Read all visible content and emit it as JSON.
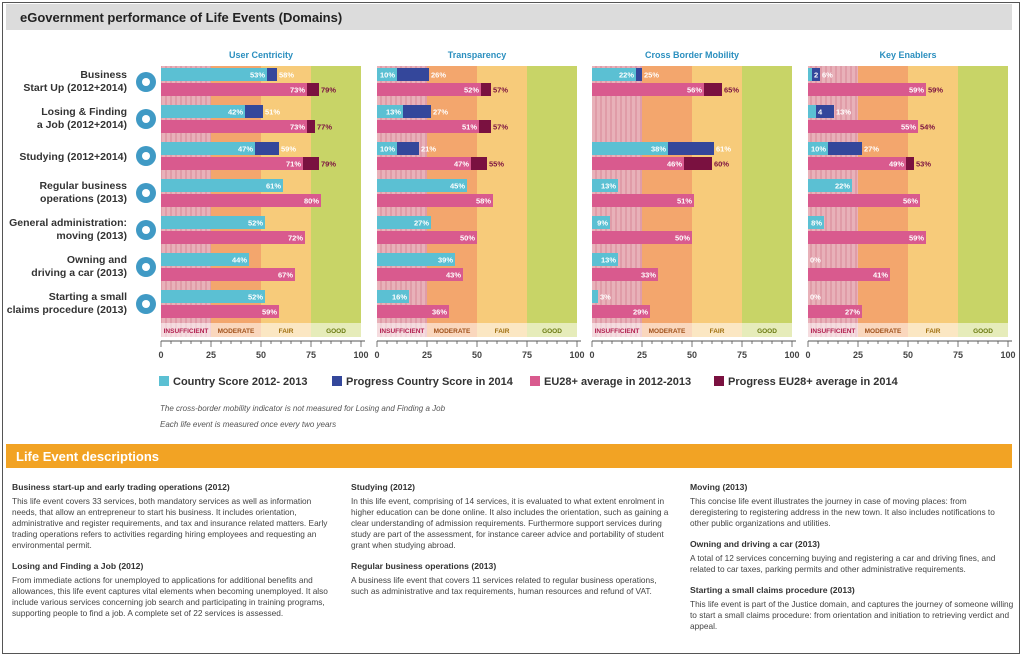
{
  "title": "eGovernment performance of Life Events (Domains)",
  "colors": {
    "country_2012": "#5bc0d3",
    "country_progress": "#34479b",
    "eu_2012": "#d95a8e",
    "eu_progress": "#7a1140",
    "band_insufficient": "#e8b1b9",
    "band_moderate": "#f3a66d",
    "band_fair": "#f7cb7a",
    "band_good": "#c8d467"
  },
  "chart_data": {
    "type": "bar",
    "orientation": "horizontal",
    "xlim": [
      0,
      100
    ],
    "xticks": [
      "0",
      "25",
      "50",
      "75",
      "100"
    ],
    "bands": [
      "INSUFFICIENT",
      "MODERATE",
      "FAIR",
      "GOOD"
    ],
    "life_events": [
      {
        "line1": "Business",
        "line2": "Start Up (2012+2014)",
        "icon": "seedling-icon"
      },
      {
        "line1": "Losing & Finding",
        "line2": "a Job (2012+2014)",
        "icon": "handshake-icon"
      },
      {
        "line1": "Studying (2012+2014)",
        "line2": "",
        "icon": "graduation-icon"
      },
      {
        "line1": "Regular business",
        "line2": "operations (2013)",
        "icon": "gears-icon"
      },
      {
        "line1": "General administration:",
        "line2": "moving (2013)",
        "icon": "truck-icon"
      },
      {
        "line1": "Owning and",
        "line2": "driving a car (2013)",
        "icon": "car-icon"
      },
      {
        "line1": "Starting a small",
        "line2": "claims procedure (2013)",
        "icon": "scales-icon"
      }
    ],
    "domains": [
      {
        "name": "User Centricity",
        "country": [
          {
            "base": 53,
            "base_label": "53%",
            "prog": 58,
            "prog_label": "58%"
          },
          {
            "base": 42,
            "base_label": "42%",
            "prog": 51,
            "prog_label": "51%"
          },
          {
            "base": 47,
            "base_label": "47%",
            "prog": 59,
            "prog_label": "59%"
          },
          {
            "base": 61,
            "base_label": "61%",
            "prog": null,
            "prog_label": ""
          },
          {
            "base": 52,
            "base_label": "52%",
            "prog": null,
            "prog_label": ""
          },
          {
            "base": 44,
            "base_label": "44%",
            "prog": null,
            "prog_label": ""
          },
          {
            "base": 52,
            "base_label": "52%",
            "prog": null,
            "prog_label": ""
          }
        ],
        "eu": [
          {
            "base": 73,
            "base_label": "73%",
            "prog": 79,
            "prog_label": "79%"
          },
          {
            "base": 73,
            "base_label": "73%",
            "prog": 77,
            "prog_label": "77%"
          },
          {
            "base": 71,
            "base_label": "71%",
            "prog": 79,
            "prog_label": "79%"
          },
          {
            "base": 80,
            "base_label": "80%",
            "prog": null,
            "prog_label": ""
          },
          {
            "base": 72,
            "base_label": "72%",
            "prog": null,
            "prog_label": ""
          },
          {
            "base": 67,
            "base_label": "67%",
            "prog": null,
            "prog_label": ""
          },
          {
            "base": 59,
            "base_label": "59%",
            "prog": null,
            "prog_label": ""
          }
        ]
      },
      {
        "name": "Transparency",
        "country": [
          {
            "base": 10,
            "base_label": "10%",
            "prog": 26,
            "prog_label": "26%"
          },
          {
            "base": 13,
            "base_label": "13%",
            "prog": 27,
            "prog_label": "27%"
          },
          {
            "base": 10,
            "base_label": "10%",
            "prog": 21,
            "prog_label": "21%"
          },
          {
            "base": 45,
            "base_label": "45%",
            "prog": null,
            "prog_label": ""
          },
          {
            "base": 27,
            "base_label": "27%",
            "prog": null,
            "prog_label": ""
          },
          {
            "base": 39,
            "base_label": "39%",
            "prog": null,
            "prog_label": ""
          },
          {
            "base": 16,
            "base_label": "16%",
            "prog": null,
            "prog_label": ""
          }
        ],
        "eu": [
          {
            "base": 52,
            "base_label": "52%",
            "prog": 57,
            "prog_label": "57%"
          },
          {
            "base": 51,
            "base_label": "51%",
            "prog": 57,
            "prog_label": "57%"
          },
          {
            "base": 47,
            "base_label": "47%",
            "prog": 55,
            "prog_label": "55%"
          },
          {
            "base": 58,
            "base_label": "58%",
            "prog": null,
            "prog_label": ""
          },
          {
            "base": 50,
            "base_label": "50%",
            "prog": null,
            "prog_label": ""
          },
          {
            "base": 43,
            "base_label": "43%",
            "prog": null,
            "prog_label": ""
          },
          {
            "base": 36,
            "base_label": "36%",
            "prog": null,
            "prog_label": ""
          }
        ]
      },
      {
        "name": "Cross Border Mobility",
        "country": [
          {
            "base": 22,
            "base_label": "22%",
            "prog": 25,
            "prog_label": "25%"
          },
          {
            "base": null,
            "base_label": "",
            "prog": null,
            "prog_label": ""
          },
          {
            "base": 38,
            "base_label": "38%",
            "prog": 61,
            "prog_label": "61%"
          },
          {
            "base": 13,
            "base_label": "13%",
            "prog": null,
            "prog_label": ""
          },
          {
            "base": 9,
            "base_label": "9%",
            "prog": null,
            "prog_label": ""
          },
          {
            "base": 13,
            "base_label": "13%",
            "prog": null,
            "prog_label": ""
          },
          {
            "base": 3,
            "base_label": "3%",
            "prog": null,
            "prog_label": ""
          }
        ],
        "eu": [
          {
            "base": 56,
            "base_label": "56%",
            "prog": 65,
            "prog_label": "65%"
          },
          {
            "base": null,
            "base_label": "",
            "prog": null,
            "prog_label": ""
          },
          {
            "base": 46,
            "base_label": "46%",
            "prog": 60,
            "prog_label": "60%"
          },
          {
            "base": 51,
            "base_label": "51%",
            "prog": null,
            "prog_label": ""
          },
          {
            "base": 50,
            "base_label": "50%",
            "prog": null,
            "prog_label": ""
          },
          {
            "base": 33,
            "base_label": "33%",
            "prog": null,
            "prog_label": ""
          },
          {
            "base": 29,
            "base_label": "29%",
            "prog": null,
            "prog_label": ""
          }
        ]
      },
      {
        "name": "Key Enablers",
        "country": [
          {
            "base": 2,
            "base_label": "2",
            "prog": 6,
            "prog_label": "6%"
          },
          {
            "base": 4,
            "base_label": "4",
            "prog": 13,
            "prog_label": "13%"
          },
          {
            "base": 10,
            "base_label": "10%",
            "prog": 27,
            "prog_label": "27%"
          },
          {
            "base": 22,
            "base_label": "22%",
            "prog": null,
            "prog_label": ""
          },
          {
            "base": 8,
            "base_label": "8%",
            "prog": null,
            "prog_label": ""
          },
          {
            "base": 0,
            "base_label": "0%",
            "prog": null,
            "prog_label": ""
          },
          {
            "base": 0,
            "base_label": "0%",
            "prog": null,
            "prog_label": ""
          }
        ],
        "eu": [
          {
            "base": 59,
            "base_label": "59%",
            "prog": 59,
            "prog_label": "59%"
          },
          {
            "base": 55,
            "base_label": "55%",
            "prog": 54,
            "prog_label": "54%"
          },
          {
            "base": 49,
            "base_label": "49%",
            "prog": 53,
            "prog_label": "53%"
          },
          {
            "base": 56,
            "base_label": "56%",
            "prog": null,
            "prog_label": ""
          },
          {
            "base": 59,
            "base_label": "59%",
            "prog": null,
            "prog_label": ""
          },
          {
            "base": 41,
            "base_label": "41%",
            "prog": null,
            "prog_label": ""
          },
          {
            "base": 27,
            "base_label": "27%",
            "prog": null,
            "prog_label": ""
          }
        ]
      }
    ],
    "legend": [
      {
        "label": "Country Score 2012- 2013",
        "color": "#5bc0d3"
      },
      {
        "label": "Progress Country Score in 2014",
        "color": "#34479b"
      },
      {
        "label": "EU28+ average in 2012-2013",
        "color": "#d95a8e"
      },
      {
        "label": "Progress EU28+ average in 2014",
        "color": "#7a1140"
      }
    ],
    "footnotes": [
      "The cross-border mobility indicator is not measured for Losing and Finding a Job",
      "Each life event is measured once every two years"
    ]
  },
  "descriptions": {
    "title": "Life Event descriptions",
    "columns": [
      [
        {
          "heading": "Business start-up and early trading operations (2012)",
          "text": "This life event covers 33 services, both mandatory services as well as information needs, that allow an entrepreneur to start his business. It includes orientation, administrative and register requirements, and tax and insurance related matters. Early trading operations refers to activities regarding hiring employees and requesting an environmental permit."
        },
        {
          "heading": "Losing and Finding a Job (2012)",
          "text": "From immediate actions for unemployed to applications for additional benefits and allowances, this life event captures vital elements when becoming unemployed. It also include various services concerning job search and participating in training programs, supporting people to find a job. A complete set of 22 services is assessed."
        }
      ],
      [
        {
          "heading": "Studying (2012)",
          "text": "In this life event, comprising of 14 services, it is evaluated to what extent enrolment in higher education can be done online. It also includes the orientation, such as gaining a clear understanding of admission requirements. Furthermore support services during study are part of the assessment, for instance career advice and portability of student grant when studying abroad."
        },
        {
          "heading": "Regular business operations (2013)",
          "text": "A business life event that covers 11 services related to regular business operations, such as administrative and tax requirements, human resources and refund of VAT."
        }
      ],
      [
        {
          "heading": "Moving (2013)",
          "text": "This concise life event illustrates the journey in case of moving places: from deregistering to registering address in the new town. It also includes notifications to other public organizations and utilities."
        },
        {
          "heading": "Owning and driving a car (2013)",
          "text": "A total of 12 services concerning buying and registering a car and driving fines, and related to car taxes, parking permits and other administrative requirements."
        },
        {
          "heading": "Starting a small claims procedure (2013)",
          "text": "This life event is part of the Justice domain, and captures the journey of someone willing to start a small claims procedure: from orientation and initiation to retrieving verdict and appeal."
        }
      ]
    ]
  }
}
